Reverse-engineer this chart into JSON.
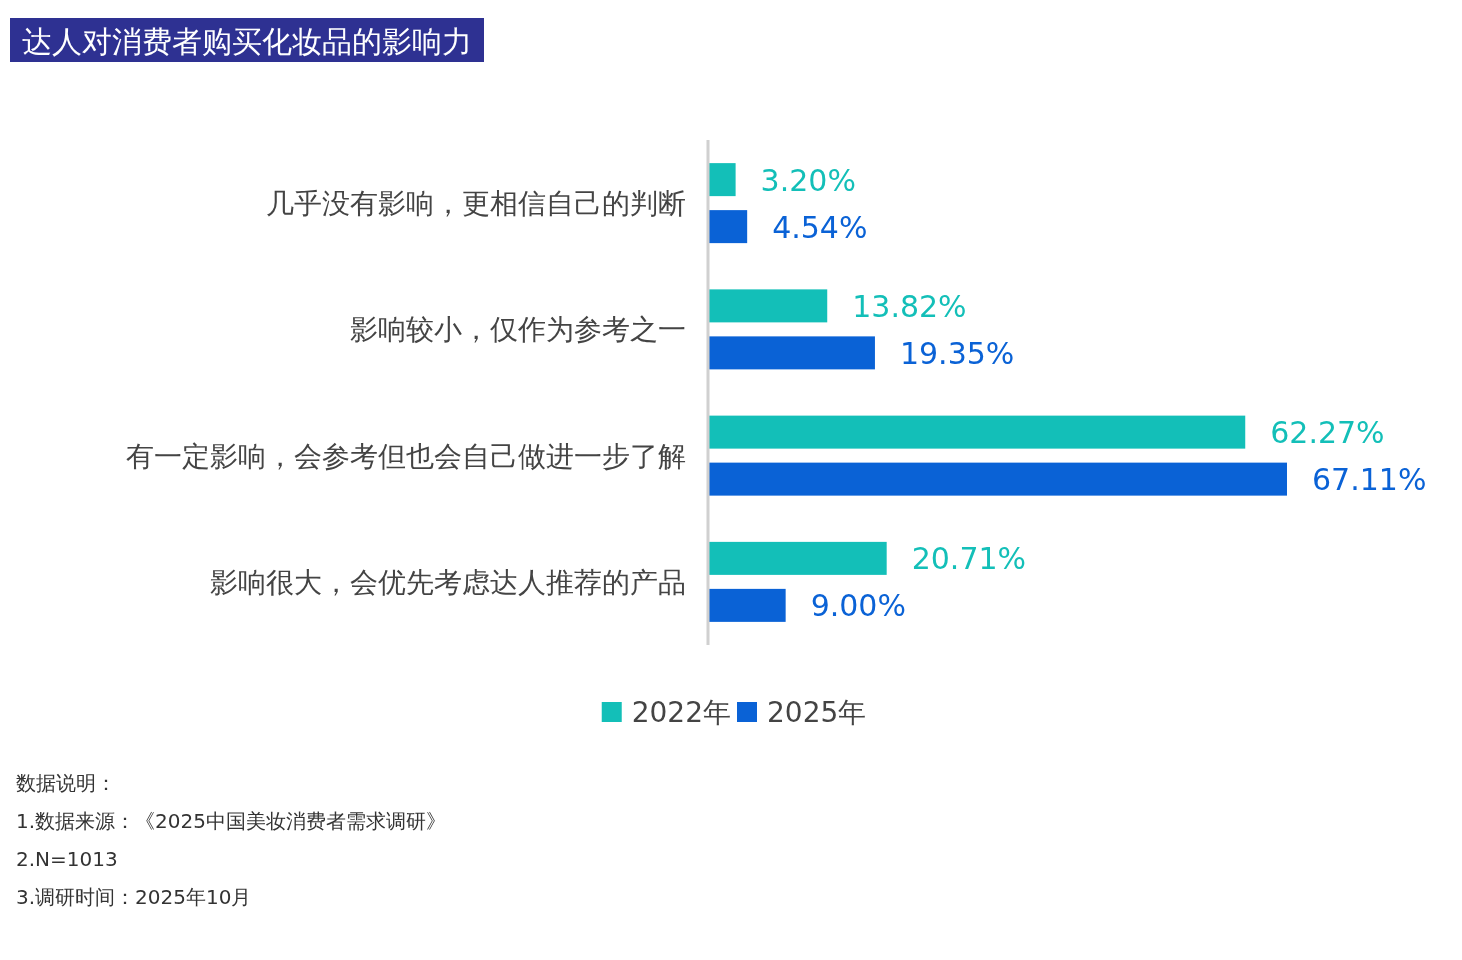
{
  "chart_data": {
    "type": "bar",
    "orientation": "horizontal",
    "title": "达人对消费者购买化妆品的影响力",
    "categories": [
      "几乎没有影响，更相信自己的判断",
      "影响较小，仅作为参考之一",
      "有一定影响，会参考但也会自己做进一步了解",
      "影响很大，会优先考虑达人推荐的产品"
    ],
    "series": [
      {
        "name": "2022年",
        "color": "#13bfb8",
        "values": [
          3.2,
          13.82,
          62.27,
          20.71
        ],
        "value_labels": [
          "3.20%",
          "13.82%",
          "62.27%",
          "20.71%"
        ]
      },
      {
        "name": "2025年",
        "color": "#0a62d6",
        "values": [
          4.54,
          19.35,
          67.11,
          9.0
        ],
        "value_labels": [
          "4.54%",
          "19.35%",
          "67.11%",
          "9.00%"
        ]
      }
    ],
    "legend": "bottom",
    "annotations": [
      "数据说明：",
      "1.数据来源：《2025中国美妆消费者需求调研》",
      "2.N=1013",
      "3.调研时间：2025年10月"
    ]
  }
}
